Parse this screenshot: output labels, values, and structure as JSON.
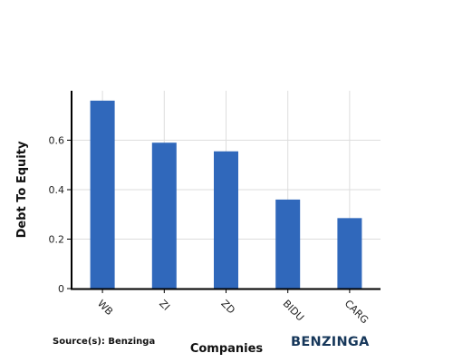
{
  "chart_data": {
    "type": "bar",
    "categories": [
      "WB",
      "ZI",
      "ZD",
      "BIDU",
      "CARG"
    ],
    "values": [
      0.76,
      0.59,
      0.555,
      0.36,
      0.285
    ],
    "xlabel": "Companies",
    "ylabel": "Debt To Equity",
    "ylim": [
      0,
      0.8
    ],
    "yticks": [
      0,
      0.2,
      0.4,
      0.6
    ],
    "ytick_labels": [
      "0",
      "0.2",
      "0.4",
      "0.6"
    ],
    "grid": true,
    "bar_color": "#3068bb"
  },
  "footer": {
    "source": "Source(s): Benzinga",
    "brand": "BENZINGA"
  }
}
